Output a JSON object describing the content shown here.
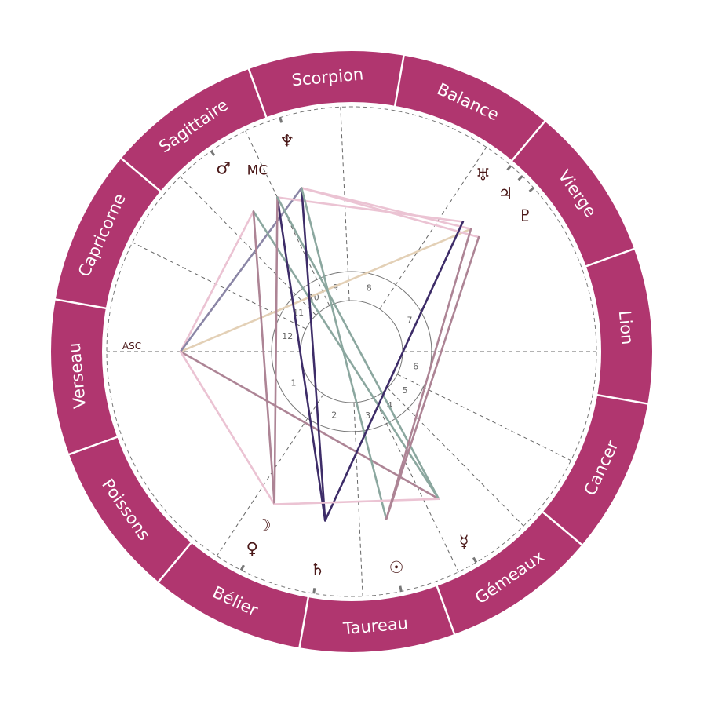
{
  "colors": {
    "ring": "#b0366f",
    "glyph": "#4a1818",
    "aspect_pink": "#ebc3d3",
    "aspect_mauve": "#ad8495",
    "aspect_green": "#8ba79f",
    "aspect_darkpurple": "#3d2c68",
    "aspect_greypurple": "#8b86a6",
    "aspect_beige": "#e3d0b6"
  },
  "signs": [
    {
      "name": "Bélier",
      "start_longitude": 0
    },
    {
      "name": "Taureau",
      "start_longitude": 30
    },
    {
      "name": "Gémeaux",
      "start_longitude": 60
    },
    {
      "name": "Cancer",
      "start_longitude": 90
    },
    {
      "name": "Lion",
      "start_longitude": 120
    },
    {
      "name": "Vierge",
      "start_longitude": 150
    },
    {
      "name": "Balance",
      "start_longitude": 180
    },
    {
      "name": "Scorpion",
      "start_longitude": 210
    },
    {
      "name": "Sagittaire",
      "start_longitude": 240
    },
    {
      "name": "Capricorne",
      "start_longitude": 270
    },
    {
      "name": "Verseau",
      "start_longitude": 300
    },
    {
      "name": "Poissons",
      "start_longitude": 330
    }
  ],
  "houses": [
    {
      "number": "1",
      "cusp": 310
    },
    {
      "number": "2",
      "cusp": 6.6
    },
    {
      "number": "3",
      "cusp": 42.6
    },
    {
      "number": "4",
      "cusp": 65.9
    },
    {
      "number": "5",
      "cusp": 84.6
    },
    {
      "number": "6",
      "cusp": 103.6
    },
    {
      "number": "7",
      "cusp": 130
    },
    {
      "number": "8",
      "cusp": 186.6
    },
    {
      "number": "9",
      "cusp": 222.6
    },
    {
      "number": "10",
      "cusp": 245.7
    },
    {
      "number": "11",
      "cusp": 264.4
    },
    {
      "number": "12",
      "cusp": 283.5
    }
  ],
  "angles": [
    {
      "id": "asc",
      "label": "ASC",
      "longitude": 310
    },
    {
      "id": "mc",
      "label": "MC",
      "longitude": 245.7
    }
  ],
  "planets": [
    {
      "id": "mars",
      "glyph": "♂",
      "longitude": 255
    },
    {
      "id": "neptune",
      "glyph": "♆",
      "longitude": 237
    },
    {
      "id": "uranus",
      "glyph": "♅",
      "longitude": 179.4
    },
    {
      "id": "jupiter",
      "glyph": "♃",
      "longitude": 175.8
    },
    {
      "id": "pluto",
      "glyph": "♇",
      "longitude": 172
    },
    {
      "id": "mercury",
      "glyph": "☿",
      "longitude": 70.6
    },
    {
      "id": "sun",
      "glyph": "☉",
      "longitude": 51.7
    },
    {
      "id": "saturn",
      "glyph": "♄",
      "longitude": 31.1
    },
    {
      "id": "venus",
      "glyph": "♀",
      "longitude": 13.2
    },
    {
      "id": "moon",
      "glyph": "☽",
      "longitude": 13.2
    }
  ],
  "aspects": [
    {
      "from": "asc",
      "to": "jupiter",
      "color": "aspect_beige"
    },
    {
      "from": "asc",
      "to": "mars",
      "color": "aspect_pink"
    },
    {
      "from": "asc",
      "to": "neptune",
      "color": "aspect_greypurple"
    },
    {
      "from": "asc",
      "to": "mercury",
      "color": "aspect_mauve"
    },
    {
      "from": "asc",
      "to": "venus",
      "color": "aspect_pink"
    },
    {
      "from": "mars",
      "to": "mercury",
      "color": "aspect_green"
    },
    {
      "from": "mars",
      "to": "venus",
      "color": "aspect_mauve"
    },
    {
      "from": "mc",
      "to": "saturn",
      "color": "aspect_darkpurple"
    },
    {
      "from": "mc",
      "to": "uranus",
      "color": "aspect_pink"
    },
    {
      "from": "mc",
      "to": "venus",
      "color": "aspect_mauve"
    },
    {
      "from": "mc",
      "to": "mercury",
      "color": "aspect_green"
    },
    {
      "from": "neptune",
      "to": "saturn",
      "color": "aspect_darkpurple"
    },
    {
      "from": "neptune",
      "to": "jupiter",
      "color": "aspect_pink"
    },
    {
      "from": "neptune",
      "to": "pluto",
      "color": "aspect_pink"
    },
    {
      "from": "neptune",
      "to": "sun",
      "color": "aspect_green"
    },
    {
      "from": "saturn",
      "to": "uranus",
      "color": "aspect_darkpurple"
    },
    {
      "from": "venus",
      "to": "mercury",
      "color": "aspect_pink"
    },
    {
      "from": "jupiter",
      "to": "sun",
      "color": "aspect_mauve"
    },
    {
      "from": "pluto",
      "to": "sun",
      "color": "aspect_mauve"
    }
  ]
}
